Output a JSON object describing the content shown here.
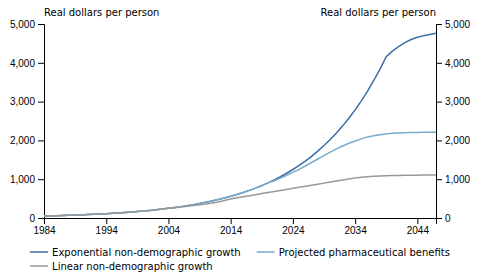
{
  "chart_data": {
    "type": "line",
    "ylabel": "Real dollars per person",
    "y2label": "Real dollars per person",
    "x": [
      1984,
      1985,
      1986,
      1987,
      1988,
      1989,
      1990,
      1991,
      1992,
      1993,
      1994,
      1995,
      1996,
      1997,
      1998,
      1999,
      2000,
      2001,
      2002,
      2003,
      2004,
      2005,
      2006,
      2007,
      2008,
      2009,
      2010,
      2011,
      2012,
      2013,
      2014,
      2015,
      2016,
      2017,
      2018,
      2019,
      2020,
      2021,
      2022,
      2023,
      2024,
      2025,
      2026,
      2027,
      2028,
      2029,
      2030,
      2031,
      2032,
      2033,
      2034,
      2035,
      2036,
      2037,
      2038,
      2039,
      2040,
      2041,
      2042,
      2043,
      2044,
      2045,
      2046,
      2047
    ],
    "series": [
      {
        "name": "Exponential non-demographic growth",
        "color": "#3a6ea5",
        "values": [
          50,
          54,
          58,
          63,
          68,
          74,
          80,
          87,
          94,
          102,
          111,
          120,
          130,
          141,
          153,
          166,
          180,
          195,
          212,
          230,
          249,
          270,
          293,
          318,
          344,
          373,
          405,
          439,
          476,
          516,
          559,
          606,
          657,
          712,
          771,
          836,
          906,
          982,
          1064,
          1153,
          1250,
          1354,
          1468,
          1590,
          1723,
          1867,
          2023,
          2192,
          2375,
          2573,
          2788,
          3020,
          3272,
          3544,
          3839,
          4158,
          4300,
          4420,
          4520,
          4600,
          4660,
          4700,
          4730,
          4760
        ]
      },
      {
        "name": "Projected pharmaceutical benefits",
        "color": "#7aabc8",
        "values": [
          50,
          54,
          58,
          63,
          68,
          74,
          80,
          87,
          94,
          102,
          111,
          120,
          130,
          141,
          153,
          166,
          180,
          195,
          212,
          230,
          249,
          270,
          293,
          318,
          344,
          373,
          405,
          439,
          476,
          516,
          559,
          606,
          657,
          712,
          771,
          836,
          906,
          960,
          1030,
          1100,
          1175,
          1255,
          1340,
          1430,
          1520,
          1610,
          1700,
          1780,
          1855,
          1925,
          1985,
          2040,
          2085,
          2120,
          2148,
          2168,
          2182,
          2192,
          2198,
          2202,
          2205,
          2208,
          2210,
          2212
        ]
      },
      {
        "name": "Linear non-demographic growth",
        "color": "#999999",
        "values": [
          50,
          54,
          58,
          63,
          68,
          74,
          80,
          87,
          94,
          102,
          111,
          120,
          130,
          141,
          153,
          166,
          180,
          195,
          212,
          230,
          249,
          267,
          285,
          304,
          322,
          341,
          360,
          385,
          415,
          450,
          490,
          520,
          548,
          575,
          602,
          629,
          656,
          683,
          710,
          737,
          764,
          791,
          818,
          845,
          872,
          899,
          926,
          953,
          980,
          1007,
          1034,
          1050,
          1063,
          1073,
          1082,
          1089,
          1094,
          1098,
          1101,
          1103,
          1105,
          1107,
          1108,
          1109
        ]
      }
    ],
    "xlim": [
      1984,
      2047
    ],
    "xticks": [
      1984,
      1994,
      2004,
      2014,
      2024,
      2034,
      2044
    ],
    "ylim": [
      0,
      5000
    ],
    "yticks": [
      0,
      {
        "value": 1000,
        "label": "1,000"
      },
      {
        "value": 2000,
        "label": "2,000"
      },
      {
        "value": 3000,
        "label": "3,000"
      },
      {
        "value": 4000,
        "label": "4,000"
      },
      {
        "value": 5000,
        "label": "5,000"
      }
    ],
    "y2lim": [
      0,
      5000
    ],
    "y2ticks": [
      0,
      {
        "value": 1000,
        "label": "1,000"
      },
      {
        "value": 2000,
        "label": "2,000"
      },
      {
        "value": 3000,
        "label": "3,000"
      },
      {
        "value": 4000,
        "label": "4,000"
      },
      {
        "value": 5000,
        "label": "5,000"
      }
    ],
    "grid": false,
    "legend": "bottom"
  }
}
